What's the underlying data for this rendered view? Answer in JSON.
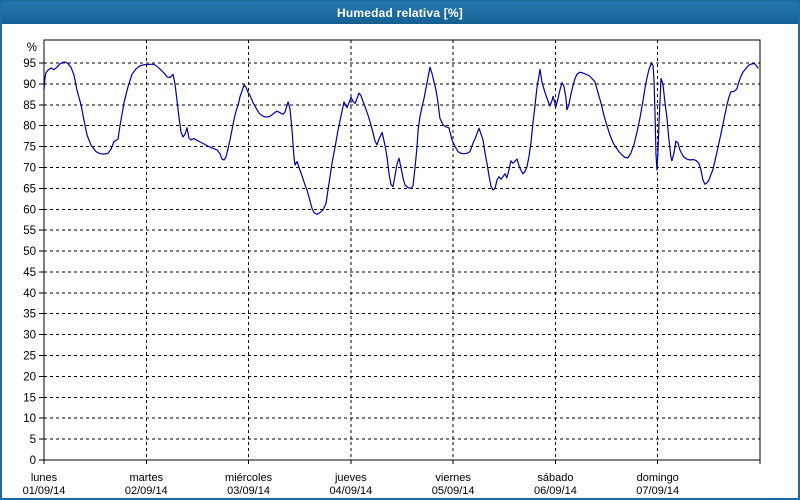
{
  "window": {
    "title": "Humedad relativa [%]"
  },
  "colors": {
    "frame": "#1d6ca2",
    "titlebar_bg": "#1d6ca2",
    "title_text": "#ffffff",
    "plot_bg": "#ffffff",
    "grid": "#000000",
    "axis": "#000000",
    "label_text": "#000000",
    "line": "#0000a8"
  },
  "chart_data": {
    "type": "line",
    "title": "Humedad relativa [%]",
    "ylabel_unit": "%",
    "ylim": [
      0,
      100
    ],
    "ytick_step": 5,
    "ytick_labels": [
      "0",
      "5",
      "10",
      "15",
      "20",
      "25",
      "30",
      "35",
      "40",
      "45",
      "50",
      "55",
      "60",
      "65",
      "70",
      "75",
      "80",
      "85",
      "90",
      "95"
    ],
    "grid": "dashed",
    "legend": "none",
    "x_days": [
      {
        "day": "lunes",
        "date": "01/09/14"
      },
      {
        "day": "martes",
        "date": "02/09/14"
      },
      {
        "day": "miércoles",
        "date": "03/09/14"
      },
      {
        "day": "jueves",
        "date": "04/09/14"
      },
      {
        "day": "viernes",
        "date": "05/09/14"
      },
      {
        "day": "sábado",
        "date": "06/09/14"
      },
      {
        "day": "domingo",
        "date": "07/09/14"
      }
    ],
    "series": [
      {
        "name": "Humedad relativa",
        "color": "#0000a8",
        "x_unit": "days since 01/09/14 00:00",
        "y_unit": "%",
        "points": [
          [
            0,
            88.5
          ],
          [
            0.01,
            91.5
          ],
          [
            0.02,
            92.7
          ],
          [
            0.039,
            93.3
          ],
          [
            0.068,
            93.8
          ],
          [
            0.098,
            93.4
          ],
          [
            0.127,
            94
          ],
          [
            0.156,
            94.8
          ],
          [
            0.186,
            95.2
          ],
          [
            0.215,
            95.2
          ],
          [
            0.235,
            94.8
          ],
          [
            0.264,
            94
          ],
          [
            0.293,
            92.1
          ],
          [
            0.323,
            88.5
          ],
          [
            0.362,
            85
          ],
          [
            0.391,
            81.3
          ],
          [
            0.42,
            77.8
          ],
          [
            0.459,
            75.4
          ],
          [
            0.508,
            73.8
          ],
          [
            0.548,
            73.3
          ],
          [
            0.587,
            73.2
          ],
          [
            0.626,
            73.4
          ],
          [
            0.655,
            74.4
          ],
          [
            0.684,
            76.2
          ],
          [
            0.723,
            76.8
          ],
          [
            0.743,
            80
          ],
          [
            0.782,
            85.5
          ],
          [
            0.821,
            89.3
          ],
          [
            0.86,
            92.3
          ],
          [
            0.899,
            93.6
          ],
          [
            0.939,
            94.3
          ],
          [
            0.978,
            94.6
          ],
          [
            1.036,
            94.7
          ],
          [
            1.075,
            94.7
          ],
          [
            1.115,
            94
          ],
          [
            1.144,
            93.3
          ],
          [
            1.173,
            92.6
          ],
          [
            1.203,
            91.7
          ],
          [
            1.232,
            91.5
          ],
          [
            1.261,
            92.3
          ],
          [
            1.281,
            90
          ],
          [
            1.3,
            86
          ],
          [
            1.32,
            82
          ],
          [
            1.339,
            78.5
          ],
          [
            1.359,
            77.3
          ],
          [
            1.379,
            78
          ],
          [
            1.398,
            79.5
          ],
          [
            1.418,
            77
          ],
          [
            1.437,
            76.6
          ],
          [
            1.466,
            76.9
          ],
          [
            1.496,
            76.5
          ],
          [
            1.535,
            76
          ],
          [
            1.574,
            75.5
          ],
          [
            1.613,
            75
          ],
          [
            1.652,
            74.6
          ],
          [
            1.691,
            74.2
          ],
          [
            1.721,
            73.3
          ],
          [
            1.74,
            72
          ],
          [
            1.76,
            71.8
          ],
          [
            1.779,
            72.5
          ],
          [
            1.799,
            74.5
          ],
          [
            1.818,
            76.6
          ],
          [
            1.838,
            79
          ],
          [
            1.858,
            81.5
          ],
          [
            1.877,
            83.5
          ],
          [
            1.897,
            84.8
          ],
          [
            1.916,
            86.9
          ],
          [
            1.936,
            88.3
          ],
          [
            1.955,
            89.7
          ],
          [
            1.975,
            89.2
          ],
          [
            1.994,
            88
          ],
          [
            2.014,
            87.3
          ],
          [
            2.043,
            85.5
          ],
          [
            2.073,
            84.2
          ],
          [
            2.102,
            83
          ],
          [
            2.131,
            82.4
          ],
          [
            2.161,
            82.1
          ],
          [
            2.19,
            82.1
          ],
          [
            2.219,
            82.4
          ],
          [
            2.249,
            83
          ],
          [
            2.278,
            83.5
          ],
          [
            2.307,
            83.1
          ],
          [
            2.337,
            82.7
          ],
          [
            2.356,
            83.3
          ],
          [
            2.386,
            85.7
          ],
          [
            2.405,
            84
          ],
          [
            2.425,
            79
          ],
          [
            2.444,
            72.5
          ],
          [
            2.454,
            70.6
          ],
          [
            2.474,
            71.4
          ],
          [
            2.493,
            70
          ],
          [
            2.522,
            68
          ],
          [
            2.552,
            65.8
          ],
          [
            2.571,
            64.6
          ],
          [
            2.601,
            62
          ],
          [
            2.62,
            60.2
          ],
          [
            2.64,
            59.2
          ],
          [
            2.669,
            58.8
          ],
          [
            2.698,
            59.2
          ],
          [
            2.728,
            59.8
          ],
          [
            2.757,
            61.4
          ],
          [
            2.786,
            66.2
          ],
          [
            2.816,
            71
          ],
          [
            2.845,
            74.8
          ],
          [
            2.874,
            78.9
          ],
          [
            2.904,
            82.3
          ],
          [
            2.933,
            85.7
          ],
          [
            2.962,
            84.3
          ],
          [
            2.982,
            85.5
          ],
          [
            3.002,
            86.8
          ],
          [
            3.021,
            85.8
          ],
          [
            3.041,
            85.3
          ],
          [
            3.06,
            86.5
          ],
          [
            3.08,
            87.8
          ],
          [
            3.099,
            87.2
          ],
          [
            3.119,
            85.8
          ],
          [
            3.139,
            84.5
          ],
          [
            3.168,
            82.5
          ],
          [
            3.187,
            81
          ],
          [
            3.217,
            78.2
          ],
          [
            3.236,
            76.3
          ],
          [
            3.256,
            75.4
          ],
          [
            3.275,
            76.8
          ],
          [
            3.305,
            78.4
          ],
          [
            3.334,
            75.3
          ],
          [
            3.353,
            72.5
          ],
          [
            3.373,
            68.5
          ],
          [
            3.392,
            65.9
          ],
          [
            3.412,
            65.4
          ],
          [
            3.432,
            68
          ],
          [
            3.451,
            70.8
          ],
          [
            3.471,
            72.2
          ],
          [
            3.49,
            70
          ],
          [
            3.51,
            67.5
          ],
          [
            3.529,
            65.8
          ],
          [
            3.559,
            65.2
          ],
          [
            3.588,
            65
          ],
          [
            3.608,
            65.6
          ],
          [
            3.627,
            69.9
          ],
          [
            3.647,
            74.9
          ],
          [
            3.657,
            78.9
          ],
          [
            3.676,
            82.2
          ],
          [
            3.696,
            84.5
          ],
          [
            3.715,
            86.5
          ],
          [
            3.735,
            89
          ],
          [
            3.754,
            91.5
          ],
          [
            3.774,
            94
          ],
          [
            3.793,
            92.5
          ],
          [
            3.813,
            90.5
          ],
          [
            3.832,
            88.5
          ],
          [
            3.852,
            85.5
          ],
          [
            3.871,
            81.8
          ],
          [
            3.901,
            80.2
          ],
          [
            3.93,
            79.7
          ],
          [
            3.959,
            79.5
          ],
          [
            3.989,
            76.6
          ],
          [
            4.018,
            75
          ],
          [
            4.047,
            73.8
          ],
          [
            4.077,
            73.4
          ],
          [
            4.106,
            73.3
          ],
          [
            4.135,
            73.4
          ],
          [
            4.165,
            73.8
          ],
          [
            4.194,
            75.8
          ],
          [
            4.224,
            77.5
          ],
          [
            4.253,
            79.4
          ],
          [
            4.272,
            78
          ],
          [
            4.292,
            76.6
          ],
          [
            4.311,
            73.5
          ],
          [
            4.331,
            71
          ],
          [
            4.351,
            68
          ],
          [
            4.37,
            65.5
          ],
          [
            4.39,
            64.6
          ],
          [
            4.409,
            65
          ],
          [
            4.429,
            67
          ],
          [
            4.448,
            67.8
          ],
          [
            4.468,
            67.2
          ],
          [
            4.487,
            67.8
          ],
          [
            4.507,
            68.5
          ],
          [
            4.526,
            67.5
          ],
          [
            4.546,
            69.5
          ],
          [
            4.565,
            71.6
          ],
          [
            4.585,
            71
          ],
          [
            4.604,
            71.5
          ],
          [
            4.624,
            72
          ],
          [
            4.643,
            70.5
          ],
          [
            4.663,
            69.3
          ],
          [
            4.683,
            68.5
          ],
          [
            4.702,
            69
          ],
          [
            4.722,
            70.2
          ],
          [
            4.741,
            72.5
          ],
          [
            4.761,
            76
          ],
          [
            4.78,
            80.5
          ],
          [
            4.8,
            84.8
          ],
          [
            4.819,
            89
          ],
          [
            4.839,
            92
          ],
          [
            4.849,
            93.5
          ],
          [
            4.868,
            90.5
          ],
          [
            4.897,
            88
          ],
          [
            4.927,
            85.9
          ],
          [
            4.946,
            84.7
          ],
          [
            4.966,
            86
          ],
          [
            4.976,
            87
          ],
          [
            4.995,
            85.5
          ],
          [
            5.005,
            84.5
          ],
          [
            5.025,
            86.5
          ],
          [
            5.044,
            88.5
          ],
          [
            5.064,
            90.3
          ],
          [
            5.083,
            89.5
          ],
          [
            5.103,
            86.5
          ],
          [
            5.112,
            83.8
          ],
          [
            5.132,
            85
          ],
          [
            5.151,
            87.5
          ],
          [
            5.171,
            89.5
          ],
          [
            5.19,
            91.2
          ],
          [
            5.21,
            92.3
          ],
          [
            5.239,
            92.8
          ],
          [
            5.269,
            92.6
          ],
          [
            5.298,
            92.3
          ],
          [
            5.327,
            92
          ],
          [
            5.357,
            91.3
          ],
          [
            5.386,
            90.5
          ],
          [
            5.415,
            88
          ],
          [
            5.445,
            85.5
          ],
          [
            5.474,
            82.5
          ],
          [
            5.504,
            80
          ],
          [
            5.533,
            77.8
          ],
          [
            5.562,
            76
          ],
          [
            5.592,
            74.8
          ],
          [
            5.621,
            73.8
          ],
          [
            5.65,
            73
          ],
          [
            5.68,
            72.4
          ],
          [
            5.709,
            72.3
          ],
          [
            5.739,
            73.5
          ],
          [
            5.768,
            75.5
          ],
          [
            5.797,
            78.5
          ],
          [
            5.827,
            81.9
          ],
          [
            5.856,
            86
          ],
          [
            5.876,
            89
          ],
          [
            5.895,
            91.5
          ],
          [
            5.915,
            93.5
          ],
          [
            5.934,
            94.8
          ],
          [
            5.954,
            94.5
          ],
          [
            5.964,
            91
          ],
          [
            5.973,
            83
          ],
          [
            5.983,
            73
          ],
          [
            5.993,
            69.4
          ],
          [
            6.003,
            74
          ],
          [
            6.012,
            80
          ],
          [
            6.022,
            86
          ],
          [
            6.032,
            91.3
          ],
          [
            6.051,
            90
          ],
          [
            6.071,
            85.5
          ],
          [
            6.09,
            82
          ],
          [
            6.11,
            76.5
          ],
          [
            6.129,
            72.5
          ],
          [
            6.139,
            71.6
          ],
          [
            6.159,
            73.5
          ],
          [
            6.178,
            76.3
          ],
          [
            6.198,
            75.9
          ],
          [
            6.217,
            74.2
          ],
          [
            6.237,
            73.2
          ],
          [
            6.256,
            72.5
          ],
          [
            6.286,
            72
          ],
          [
            6.315,
            71.8
          ],
          [
            6.344,
            71.9
          ],
          [
            6.374,
            71.7
          ],
          [
            6.403,
            71
          ],
          [
            6.422,
            69.5
          ],
          [
            6.442,
            67
          ],
          [
            6.461,
            66
          ],
          [
            6.481,
            66.3
          ],
          [
            6.501,
            67
          ],
          [
            6.52,
            68.3
          ],
          [
            6.54,
            69.5
          ],
          [
            6.559,
            71.5
          ],
          [
            6.579,
            73.6
          ],
          [
            6.598,
            75.8
          ],
          [
            6.618,
            78
          ],
          [
            6.637,
            80.3
          ],
          [
            6.657,
            82.6
          ],
          [
            6.676,
            84.9
          ],
          [
            6.696,
            86.8
          ],
          [
            6.715,
            88.1
          ],
          [
            6.745,
            88.2
          ],
          [
            6.774,
            88.8
          ],
          [
            6.794,
            90.5
          ],
          [
            6.813,
            91.8
          ],
          [
            6.833,
            92.8
          ],
          [
            6.852,
            93.4
          ],
          [
            6.872,
            94
          ],
          [
            6.892,
            94.5
          ],
          [
            6.921,
            94.8
          ],
          [
            6.95,
            94.8
          ],
          [
            6.98,
            93.8
          ]
        ]
      }
    ]
  }
}
